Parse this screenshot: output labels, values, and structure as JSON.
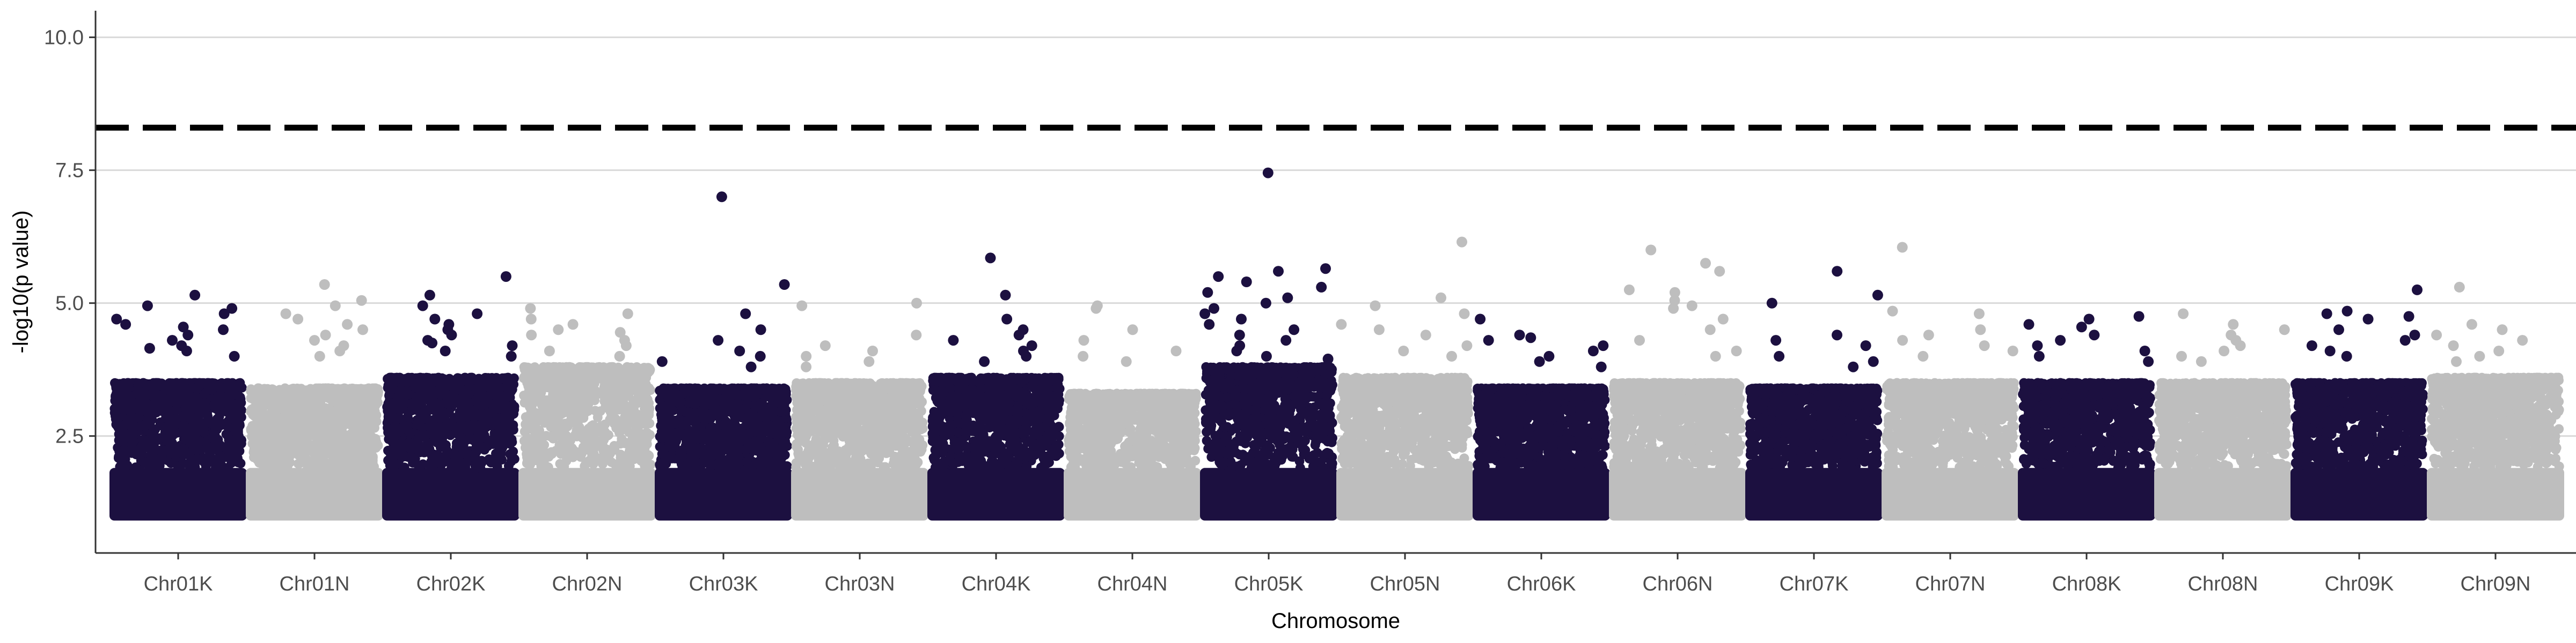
{
  "chart_data": {
    "type": "scatter",
    "subtype": "manhattan",
    "title": "",
    "xlabel": "Chromosome",
    "ylabel": "-log10(p value)",
    "ylim": [
      0.3,
      10.5
    ],
    "yticks": [
      2.5,
      5.0,
      7.5,
      10.0
    ],
    "ytick_labels": [
      "2.5",
      "5.0",
      "7.5",
      "10.0"
    ],
    "grid": "horizontal-major",
    "threshold": 8.3,
    "threshold_style": "dashed",
    "colors": {
      "dark": "#1c1040",
      "light": "#bebebe",
      "threshold": "#000000",
      "grid": "#d9d9d9",
      "axis": "#333333"
    },
    "categories": [
      "Chr01K",
      "Chr01N",
      "Chr02K",
      "Chr02N",
      "Chr03K",
      "Chr03N",
      "Chr04K",
      "Chr04N",
      "Chr05K",
      "Chr05N",
      "Chr06K",
      "Chr06N",
      "Chr07K",
      "Chr07N",
      "Chr08K",
      "Chr08N",
      "Chr09K",
      "Chr09N"
    ],
    "series": [
      {
        "chromosome": "Chr01K",
        "color": "dark",
        "dense_top": 3.5,
        "points": [
          5.15,
          4.95,
          4.9,
          4.8,
          4.7,
          4.6,
          4.55,
          4.5,
          4.4,
          4.3,
          4.2,
          4.15,
          4.1,
          4.0
        ]
      },
      {
        "chromosome": "Chr01N",
        "color": "light",
        "dense_top": 3.4,
        "points": [
          5.35,
          5.05,
          4.95,
          4.8,
          4.7,
          4.6,
          4.5,
          4.4,
          4.3,
          4.2,
          4.1,
          4.0
        ]
      },
      {
        "chromosome": "Chr02K",
        "color": "dark",
        "dense_top": 3.6,
        "points": [
          5.5,
          5.15,
          4.95,
          4.8,
          4.7,
          4.6,
          4.5,
          4.4,
          4.3,
          4.25,
          4.2,
          4.1,
          4.0
        ]
      },
      {
        "chromosome": "Chr02N",
        "color": "light",
        "dense_top": 3.8,
        "points": [
          4.9,
          4.8,
          4.7,
          4.6,
          4.5,
          4.45,
          4.4,
          4.3,
          4.2,
          4.1,
          4.0
        ]
      },
      {
        "chromosome": "Chr03K",
        "color": "dark",
        "dense_top": 3.4,
        "points": [
          7.0,
          5.35,
          4.8,
          4.5,
          4.3,
          4.1,
          4.0,
          3.9,
          3.8
        ]
      },
      {
        "chromosome": "Chr03N",
        "color": "light",
        "dense_top": 3.5,
        "points": [
          5.0,
          4.95,
          4.4,
          4.2,
          4.1,
          4.0,
          3.9,
          3.8
        ]
      },
      {
        "chromosome": "Chr04K",
        "color": "dark",
        "dense_top": 3.6,
        "points": [
          5.85,
          5.15,
          4.7,
          4.5,
          4.4,
          4.3,
          4.2,
          4.1,
          4.0,
          3.9
        ]
      },
      {
        "chromosome": "Chr04N",
        "color": "light",
        "dense_top": 3.3,
        "points": [
          4.95,
          4.9,
          4.5,
          4.3,
          4.1,
          4.0,
          3.9
        ]
      },
      {
        "chromosome": "Chr05K",
        "color": "dark",
        "dense_top": 3.8,
        "points": [
          7.45,
          5.65,
          5.6,
          5.5,
          5.4,
          5.3,
          5.2,
          5.1,
          5.0,
          4.9,
          4.8,
          4.7,
          4.6,
          4.5,
          4.4,
          4.3,
          4.2,
          4.1,
          4.0,
          3.95
        ]
      },
      {
        "chromosome": "Chr05N",
        "color": "light",
        "dense_top": 3.6,
        "points": [
          6.15,
          5.1,
          4.95,
          4.8,
          4.6,
          4.5,
          4.4,
          4.2,
          4.1,
          4.0
        ]
      },
      {
        "chromosome": "Chr06K",
        "color": "dark",
        "dense_top": 3.4,
        "points": [
          4.7,
          4.4,
          4.35,
          4.3,
          4.2,
          4.1,
          4.0,
          3.9,
          3.8
        ]
      },
      {
        "chromosome": "Chr06N",
        "color": "light",
        "dense_top": 3.5,
        "points": [
          6.0,
          5.75,
          5.6,
          5.25,
          5.2,
          5.05,
          4.95,
          4.9,
          4.7,
          4.5,
          4.3,
          4.1,
          4.0
        ]
      },
      {
        "chromosome": "Chr07K",
        "color": "dark",
        "dense_top": 3.4,
        "points": [
          5.6,
          5.15,
          5.0,
          4.4,
          4.3,
          4.2,
          4.0,
          3.9,
          3.8
        ]
      },
      {
        "chromosome": "Chr07N",
        "color": "light",
        "dense_top": 3.5,
        "points": [
          6.05,
          4.85,
          4.8,
          4.5,
          4.4,
          4.3,
          4.2,
          4.1,
          4.0
        ]
      },
      {
        "chromosome": "Chr08K",
        "color": "dark",
        "dense_top": 3.5,
        "points": [
          4.75,
          4.7,
          4.6,
          4.55,
          4.4,
          4.3,
          4.2,
          4.1,
          4.0,
          3.9
        ]
      },
      {
        "chromosome": "Chr08N",
        "color": "light",
        "dense_top": 3.5,
        "points": [
          4.8,
          4.6,
          4.5,
          4.4,
          4.3,
          4.2,
          4.1,
          4.0,
          3.9
        ]
      },
      {
        "chromosome": "Chr09K",
        "color": "dark",
        "dense_top": 3.5,
        "points": [
          5.25,
          4.85,
          4.8,
          4.75,
          4.7,
          4.5,
          4.4,
          4.3,
          4.2,
          4.1,
          4.0
        ]
      },
      {
        "chromosome": "Chr09N",
        "color": "light",
        "dense_top": 3.6,
        "points": [
          5.3,
          4.6,
          4.5,
          4.4,
          4.3,
          4.2,
          4.1,
          4.0,
          3.9
        ]
      }
    ],
    "y_floor": 1.0
  }
}
